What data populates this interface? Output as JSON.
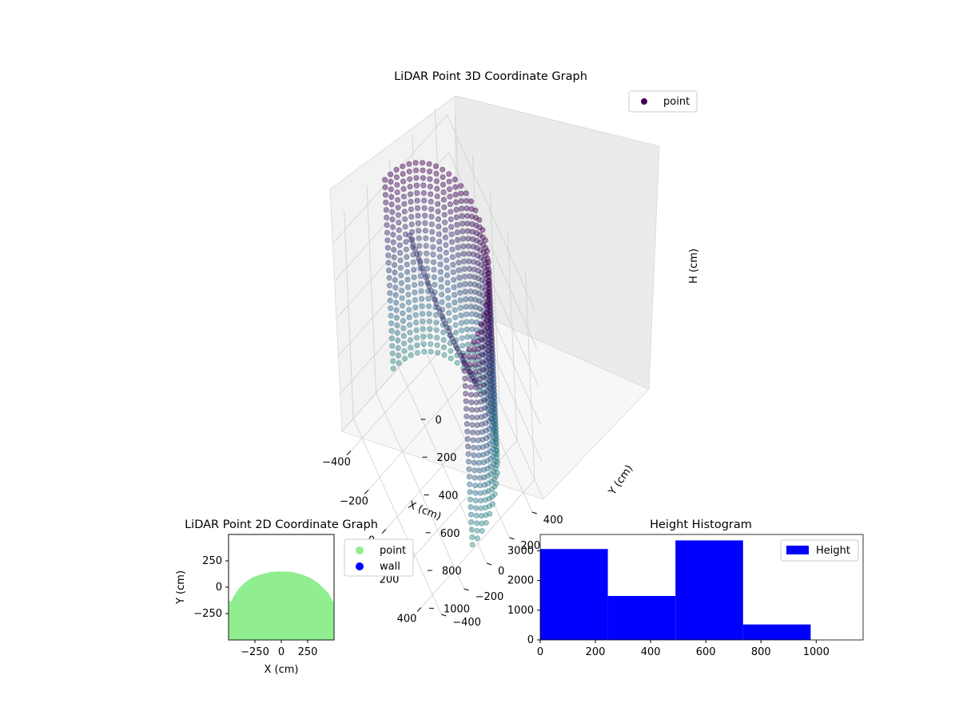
{
  "chart_data": [
    {
      "id": "scatter3d",
      "type": "scatter",
      "title": "LiDAR Point 3D Coordinate Graph",
      "xlabel": "X (cm)",
      "ylabel": "Y (cm)",
      "zlabel": "H (cm)",
      "x_ticks": [
        "−400",
        "−200",
        "0",
        "200",
        "400"
      ],
      "y_ticks": [
        "−400",
        "−200",
        "0",
        "200",
        "400"
      ],
      "z_ticks": [
        "0",
        "200",
        "400",
        "600",
        "800",
        "1000"
      ],
      "xlim": [
        -500,
        500
      ],
      "ylim": [
        -500,
        500
      ],
      "zlim": [
        0,
        1100
      ],
      "z_inverted": true,
      "grid": true,
      "legend": {
        "placement": "upper right",
        "entries": [
          {
            "label": "point",
            "color": "#440154"
          }
        ]
      },
      "structure": {
        "shell_radius_cm": 450,
        "shell_arc_degrees": [
          0,
          180
        ],
        "shell_height_range_cm": [
          0,
          1000
        ],
        "point_colormap": [
          "#440154",
          "#31688e",
          "#35b779"
        ]
      }
    },
    {
      "id": "scatter2d",
      "type": "scatter",
      "title": "LiDAR Point 2D Coordinate Graph",
      "xlabel": "X (cm)",
      "ylabel": "Y (cm)",
      "x_ticks": [
        "−250",
        "0",
        "250"
      ],
      "y_ticks": [
        "250",
        "0",
        "−250"
      ],
      "xlim": [
        -500,
        500
      ],
      "ylim": [
        -500,
        500
      ],
      "legend": {
        "placement": "right outside",
        "entries": [
          {
            "label": "point",
            "color": "#90ee90"
          },
          {
            "label": "wall",
            "color": "#0000ff"
          }
        ]
      },
      "series": [
        {
          "name": "point",
          "color": "#90ee90",
          "outline": [
            [
              -500,
              -500
            ],
            [
              -500,
              -140
            ],
            [
              -470,
              -130
            ],
            [
              -460,
              -100
            ],
            [
              -440,
              -70
            ],
            [
              -400,
              -10
            ],
            [
              -350,
              40
            ],
            [
              -280,
              90
            ],
            [
              -200,
              120
            ],
            [
              -100,
              145
            ],
            [
              0,
              150
            ],
            [
              100,
              145
            ],
            [
              200,
              120
            ],
            [
              280,
              85
            ],
            [
              350,
              40
            ],
            [
              410,
              -20
            ],
            [
              450,
              -60
            ],
            [
              480,
              -120
            ],
            [
              500,
              -150
            ],
            [
              500,
              -500
            ]
          ]
        },
        {
          "name": "wall",
          "color": "#0000ff",
          "points": []
        }
      ]
    },
    {
      "id": "histogram",
      "type": "bar",
      "title": "Height Histogram",
      "xlabel": "",
      "ylabel": "",
      "x_ticks": [
        "0",
        "200",
        "400",
        "600",
        "800",
        "1000"
      ],
      "y_ticks": [
        "0",
        "1000",
        "2000",
        "3000"
      ],
      "xlim": [
        0,
        1170
      ],
      "ylim": [
        0,
        3550
      ],
      "legend": {
        "placement": "upper right",
        "entries": [
          {
            "label": "Height",
            "color": "#0000ff"
          }
        ]
      },
      "series": [
        {
          "name": "Height",
          "color": "#0000ff",
          "bins": [
            {
              "from": 0,
              "to": 245,
              "value": 3060
            },
            {
              "from": 245,
              "to": 490,
              "value": 1480
            },
            {
              "from": 490,
              "to": 735,
              "value": 3350
            },
            {
              "from": 735,
              "to": 980,
              "value": 520
            }
          ]
        }
      ]
    }
  ]
}
